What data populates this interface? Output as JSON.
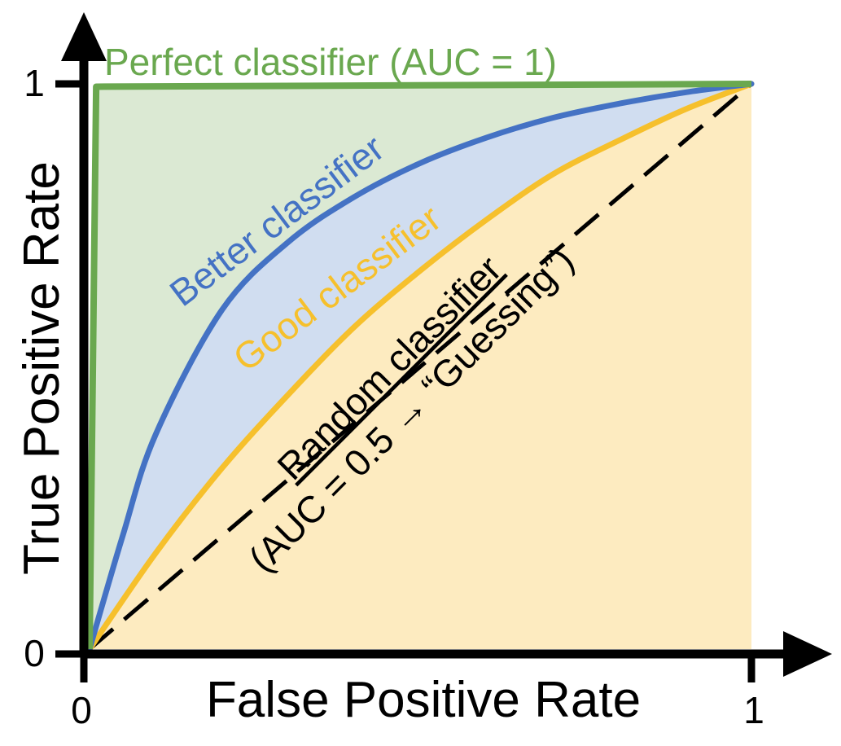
{
  "chart_data": {
    "type": "line",
    "title": "",
    "xlabel": "False Positive Rate",
    "ylabel": "True Positive Rate",
    "xlim": [
      0,
      1
    ],
    "ylim": [
      0,
      1
    ],
    "x_ticks": [
      "0",
      "1"
    ],
    "y_ticks": [
      "0",
      "1"
    ],
    "grid": false,
    "legend": "none",
    "series": [
      {
        "label": "Perfect classifier (AUC = 1)",
        "color": "#6aa84f",
        "fill": "#dbe9d3",
        "line_style": "solid",
        "points": [
          [
            0,
            0
          ],
          [
            0.01,
            0.995
          ],
          [
            1,
            1
          ]
        ]
      },
      {
        "label": "Better classifier",
        "color": "#4472c4",
        "fill": "#d0ddf0",
        "line_style": "solid",
        "points": [
          [
            0,
            0
          ],
          [
            0.05,
            0.2
          ],
          [
            0.1,
            0.38
          ],
          [
            0.2,
            0.6
          ],
          [
            0.3,
            0.72
          ],
          [
            0.4,
            0.8
          ],
          [
            0.5,
            0.86
          ],
          [
            0.6,
            0.905
          ],
          [
            0.7,
            0.94
          ],
          [
            0.8,
            0.965
          ],
          [
            0.9,
            0.985
          ],
          [
            1,
            1
          ]
        ]
      },
      {
        "label": "Good classifier",
        "color": "#f6c02c",
        "fill": "#fdebc0",
        "line_style": "solid",
        "points": [
          [
            0,
            0
          ],
          [
            0.1,
            0.17
          ],
          [
            0.2,
            0.32
          ],
          [
            0.3,
            0.45
          ],
          [
            0.4,
            0.57
          ],
          [
            0.5,
            0.67
          ],
          [
            0.6,
            0.76
          ],
          [
            0.7,
            0.84
          ],
          [
            0.8,
            0.9
          ],
          [
            0.9,
            0.955
          ],
          [
            1,
            1
          ]
        ]
      },
      {
        "label_line1": "Random classifier",
        "label_line2": "(AUC = 0.5 → “Guessing”)",
        "color": "#000000",
        "line_style": "dashed",
        "points": [
          [
            0,
            0
          ],
          [
            1,
            1
          ]
        ]
      }
    ]
  }
}
